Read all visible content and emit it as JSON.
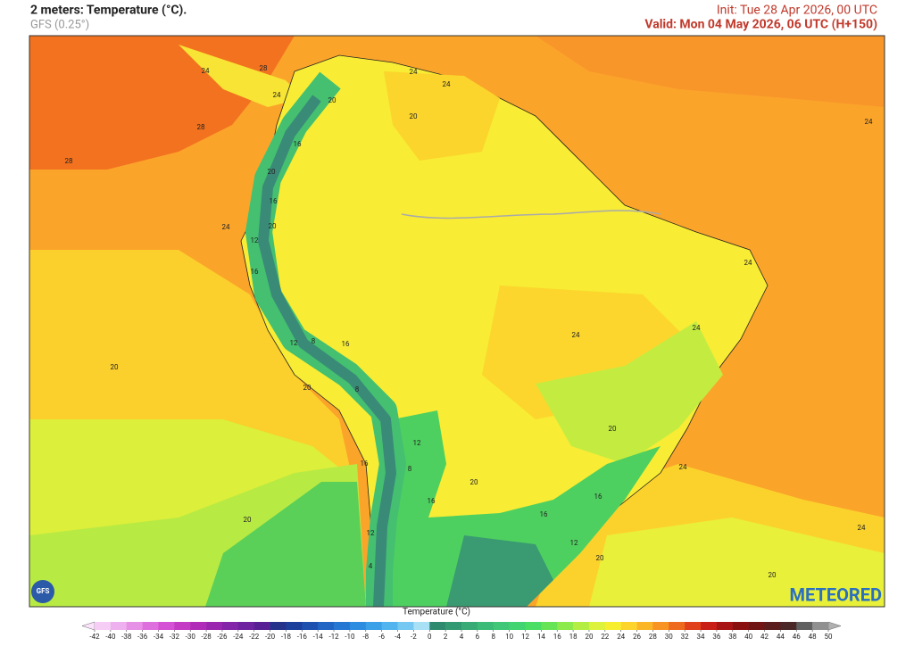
{
  "header": {
    "title": "2 meters: Temperature (°C).",
    "model": "GFS (0.25°)",
    "init": "Init: Tue 28 Apr 2026, 00 UTC",
    "valid": "Valid: Mon 04 May 2026, 06 UTC (H+150)"
  },
  "map": {
    "contour_labels": [
      "24",
      "28",
      "24",
      "28",
      "28",
      "24",
      "24",
      "20",
      "20",
      "16",
      "20",
      "24",
      "16",
      "24",
      "12",
      "20",
      "16",
      "24",
      "24",
      "20",
      "24",
      "12",
      "8",
      "16",
      "20",
      "8",
      "12",
      "16",
      "8",
      "20",
      "24",
      "20",
      "16",
      "16",
      "16",
      "20",
      "12",
      "12",
      "24",
      "20",
      "4",
      "20"
    ],
    "logo": "GFS",
    "brand": "METEORED"
  },
  "colorbar": {
    "label": "Temperature (°C)",
    "ticks": [
      -42,
      -40,
      -38,
      -36,
      -34,
      -32,
      -30,
      -28,
      -26,
      -24,
      -22,
      -20,
      -18,
      -16,
      -14,
      -12,
      -10,
      -8,
      -6,
      -4,
      -2,
      0,
      2,
      4,
      6,
      8,
      10,
      12,
      14,
      16,
      18,
      20,
      22,
      24,
      26,
      28,
      30,
      32,
      34,
      36,
      38,
      40,
      42,
      44,
      46,
      48,
      50
    ],
    "colors": [
      "#f5cdf5",
      "#eeb0ee",
      "#e690e6",
      "#de70de",
      "#d450d4",
      "#c43ac4",
      "#b02cb8",
      "#9a26b0",
      "#8424a8",
      "#6e22a0",
      "#581f94",
      "#24328a",
      "#1c3f9c",
      "#1e50b0",
      "#2064c4",
      "#2478d4",
      "#2c8ce0",
      "#3aa0e8",
      "#52b4ee",
      "#74c8f2",
      "#a8e0f6",
      "#2e8a6e",
      "#329a72",
      "#38aa76",
      "#3cba78",
      "#40c878",
      "#42d470",
      "#4ade64",
      "#66e456",
      "#8cea4c",
      "#b4ee44",
      "#dcf23c",
      "#f8ee30",
      "#fcd42c",
      "#fbb628",
      "#f79424",
      "#ee6a1e",
      "#e0401a",
      "#c81e16",
      "#a81414",
      "#8a1010",
      "#701414",
      "#5a1c1c",
      "#4a2828",
      "#606060",
      "#909090"
    ],
    "under_color": "#fbe4fb",
    "over_color": "#b0b0b0"
  }
}
